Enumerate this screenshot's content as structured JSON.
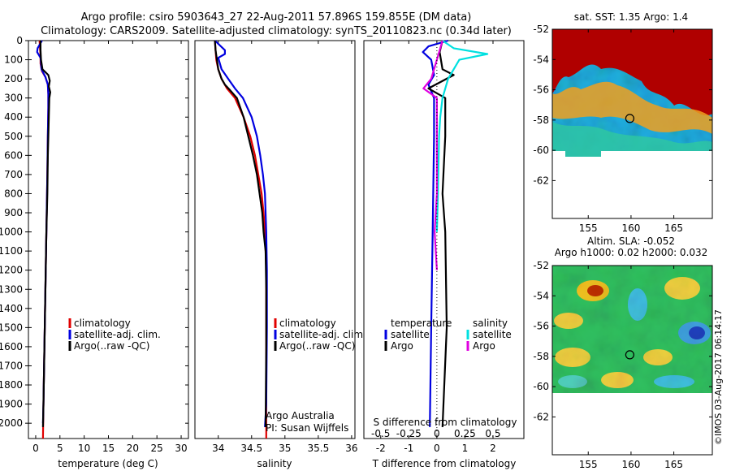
{
  "header": {
    "line1": "Argo profile: csiro 5903643_27 22-Aug-2011 57.896S 159.855E (DM data)",
    "line2": "Climatology: CARS2009. Satellite-adjusted climatology: synTS_20110823.nc (0.34d later)"
  },
  "colors": {
    "climatology": "#e00000",
    "satellite": "#0000e0",
    "argo": "#000000",
    "sat_salinity": "#00e0e0",
    "argo_salinity": "#e000e0"
  },
  "chart_data": [
    {
      "type": "line",
      "panel": "temperature",
      "xlabel": "temperature (deg C)",
      "xlim": [
        -1.5,
        31.5
      ],
      "xticks": [
        0,
        5,
        10,
        15,
        20,
        25,
        30
      ],
      "ylim": [
        2080,
        0
      ],
      "yticks": [
        0,
        100,
        200,
        300,
        400,
        500,
        600,
        700,
        800,
        900,
        1000,
        1100,
        1200,
        1300,
        1400,
        1500,
        1600,
        1700,
        1800,
        1900,
        2000
      ],
      "legend": [
        "climatology",
        "satellite-adj. clim.",
        "Argo(..raw -QC)"
      ],
      "series": [
        {
          "name": "climatology",
          "color": "#e00000",
          "points": [
            [
              0.8,
              0
            ],
            [
              0.9,
              40
            ],
            [
              1.0,
              80
            ],
            [
              1.0,
              120
            ],
            [
              1.3,
              160
            ],
            [
              2.0,
              190
            ],
            [
              2.5,
              230
            ],
            [
              2.6,
              280
            ],
            [
              2.6,
              350
            ],
            [
              2.5,
              500
            ],
            [
              2.4,
              700
            ],
            [
              2.2,
              1000
            ],
            [
              2.0,
              1300
            ],
            [
              1.8,
              1600
            ],
            [
              1.6,
              1900
            ],
            [
              1.5,
              2080
            ]
          ]
        },
        {
          "name": "satellite-adj. clim.",
          "color": "#0000e0",
          "points": [
            [
              1.3,
              0
            ],
            [
              0.4,
              40
            ],
            [
              0.3,
              60
            ],
            [
              1.0,
              90
            ],
            [
              1.2,
              150
            ],
            [
              2.0,
              190
            ],
            [
              2.5,
              230
            ],
            [
              2.6,
              280
            ],
            [
              2.6,
              350
            ],
            [
              2.5,
              500
            ],
            [
              2.4,
              700
            ],
            [
              2.2,
              1000
            ],
            [
              2.0,
              1300
            ],
            [
              1.8,
              1600
            ],
            [
              1.6,
              1900
            ],
            [
              1.5,
              2000
            ]
          ]
        },
        {
          "name": "Argo(..raw -QC)",
          "color": "#000000",
          "points": [
            [
              1.0,
              0
            ],
            [
              1.0,
              50
            ],
            [
              1.1,
              100
            ],
            [
              1.4,
              150
            ],
            [
              2.6,
              180
            ],
            [
              2.9,
              210
            ],
            [
              2.7,
              240
            ],
            [
              3.0,
              270
            ],
            [
              2.8,
              300
            ],
            [
              2.7,
              400
            ],
            [
              2.5,
              600
            ],
            [
              2.4,
              800
            ],
            [
              2.2,
              1000
            ],
            [
              2.0,
              1300
            ],
            [
              1.8,
              1600
            ],
            [
              1.6,
              1900
            ],
            [
              1.5,
              2020
            ]
          ]
        }
      ]
    },
    {
      "type": "line",
      "panel": "salinity",
      "xlabel": "salinity",
      "xlim": [
        33.65,
        36.05
      ],
      "xticks": [
        34,
        34.5,
        35,
        35.5,
        36
      ],
      "ylim": [
        2080,
        0
      ],
      "legend": [
        "climatology",
        "satellite-adj. clim.",
        "Argo(..raw -QC)"
      ],
      "annotation": [
        "Argo Australia",
        "PI: Susan Wijffels"
      ],
      "series": [
        {
          "name": "climatology",
          "color": "#e00000",
          "points": [
            [
              33.95,
              0
            ],
            [
              33.96,
              50
            ],
            [
              33.97,
              100
            ],
            [
              34.0,
              150
            ],
            [
              34.05,
              200
            ],
            [
              34.13,
              250
            ],
            [
              34.25,
              300
            ],
            [
              34.38,
              400
            ],
            [
              34.48,
              500
            ],
            [
              34.55,
              600
            ],
            [
              34.6,
              700
            ],
            [
              34.65,
              800
            ],
            [
              34.68,
              900
            ],
            [
              34.7,
              1000
            ],
            [
              34.72,
              1200
            ],
            [
              34.72,
              1500
            ],
            [
              34.72,
              2080
            ]
          ]
        },
        {
          "name": "satellite-adj. clim.",
          "color": "#0000e0",
          "points": [
            [
              33.95,
              0
            ],
            [
              34.1,
              50
            ],
            [
              34.1,
              70
            ],
            [
              34.0,
              90
            ],
            [
              34.05,
              150
            ],
            [
              34.15,
              200
            ],
            [
              34.25,
              250
            ],
            [
              34.37,
              300
            ],
            [
              34.5,
              400
            ],
            [
              34.58,
              500
            ],
            [
              34.63,
              600
            ],
            [
              34.67,
              700
            ],
            [
              34.7,
              800
            ],
            [
              34.72,
              1000
            ],
            [
              34.73,
              1200
            ],
            [
              34.73,
              1500
            ],
            [
              34.72,
              1900
            ],
            [
              34.7,
              2020
            ]
          ]
        },
        {
          "name": "Argo(..raw -QC)",
          "color": "#000000",
          "points": [
            [
              33.95,
              0
            ],
            [
              33.96,
              50
            ],
            [
              33.98,
              100
            ],
            [
              34.0,
              150
            ],
            [
              34.05,
              200
            ],
            [
              34.1,
              230
            ],
            [
              34.18,
              260
            ],
            [
              34.28,
              300
            ],
            [
              34.38,
              400
            ],
            [
              34.45,
              500
            ],
            [
              34.52,
              600
            ],
            [
              34.58,
              700
            ],
            [
              34.62,
              800
            ],
            [
              34.66,
              900
            ],
            [
              34.68,
              1000
            ],
            [
              34.71,
              1100
            ],
            [
              34.72,
              1300
            ],
            [
              34.72,
              1600
            ],
            [
              34.71,
              2020
            ]
          ]
        }
      ]
    },
    {
      "type": "line",
      "panel": "difference",
      "xlabel": "T difference from climatology",
      "xlabel_top": "S difference from climatology",
      "xlim": [
        -2.6,
        3.1
      ],
      "xticks": [
        -2,
        -1,
        0,
        1,
        2
      ],
      "xticks_top": [
        -0.5,
        -0.25,
        0,
        0.25,
        0.5
      ],
      "ylim": [
        2080,
        0
      ],
      "legend_headers": [
        "temperature",
        "salinity"
      ],
      "legend": [
        "satellite",
        "Argo",
        "satellite",
        "Argo"
      ],
      "series": [
        {
          "name": "satellite",
          "color": "#0000e0",
          "points": [
            [
              0.4,
              0
            ],
            [
              -0.3,
              30
            ],
            [
              -0.5,
              60
            ],
            [
              -0.2,
              100
            ],
            [
              -0.1,
              180
            ],
            [
              -0.3,
              230
            ],
            [
              -0.1,
              300
            ],
            [
              -0.1,
              500
            ],
            [
              -0.15,
              1000
            ],
            [
              -0.2,
              1500
            ],
            [
              -0.25,
              2020
            ]
          ]
        },
        {
          "name": "Argo",
          "color": "#000000",
          "points": [
            [
              0.2,
              0
            ],
            [
              0.1,
              60
            ],
            [
              0.2,
              150
            ],
            [
              0.6,
              180
            ],
            [
              -0.3,
              250
            ],
            [
              0.3,
              300
            ],
            [
              0.3,
              500
            ],
            [
              0.2,
              800
            ],
            [
              0.3,
              1000
            ],
            [
              0.35,
              1500
            ],
            [
              0.2,
              2020
            ]
          ]
        },
        {
          "name": "satellite",
          "color": "#00e0e0",
          "points": [
            [
              0.05,
              0
            ],
            [
              0.15,
              40
            ],
            [
              0.45,
              70
            ],
            [
              0.2,
              100
            ],
            [
              0.1,
              200
            ],
            [
              0.05,
              300
            ],
            [
              0.03,
              400
            ],
            [
              0.02,
              500
            ],
            [
              0.01,
              800
            ],
            [
              0.0,
              1000
            ]
          ]
        },
        {
          "name": "Argo",
          "color": "#e000e0",
          "points": [
            [
              0.05,
              0
            ],
            [
              0.0,
              100
            ],
            [
              -0.05,
              200
            ],
            [
              -0.12,
              250
            ],
            [
              0.0,
              300
            ],
            [
              0.0,
              400
            ],
            [
              0.0,
              600
            ],
            [
              0.0,
              800
            ],
            [
              -0.02,
              1000
            ],
            [
              0.0,
              1200
            ]
          ]
        }
      ]
    },
    {
      "type": "heatmap",
      "panel": "sst_map",
      "title": "sat. SST: 1.35 Argo: 1.4",
      "xticks": [
        155,
        160,
        165
      ],
      "yticks": [
        -52,
        -54,
        -56,
        -58,
        -60,
        -62
      ],
      "xlim": [
        150.8,
        169.5
      ],
      "ylim": [
        -64.5,
        -52
      ],
      "argo_position": [
        159.855,
        -57.896
      ]
    },
    {
      "type": "heatmap",
      "panel": "sla_map",
      "title": "Altim. SLA: -0.052",
      "subtitle": "Argo h1000: 0.02 h2000: 0.032",
      "xticks": [
        155,
        160,
        165
      ],
      "yticks": [
        -52,
        -54,
        -56,
        -58,
        -60,
        -62
      ],
      "xlim": [
        150.8,
        169.5
      ],
      "ylim": [
        -64.5,
        -52
      ],
      "argo_position": [
        159.855,
        -57.896
      ]
    }
  ],
  "stamp": "©IMOS 03-Aug-2017 06:14:17"
}
